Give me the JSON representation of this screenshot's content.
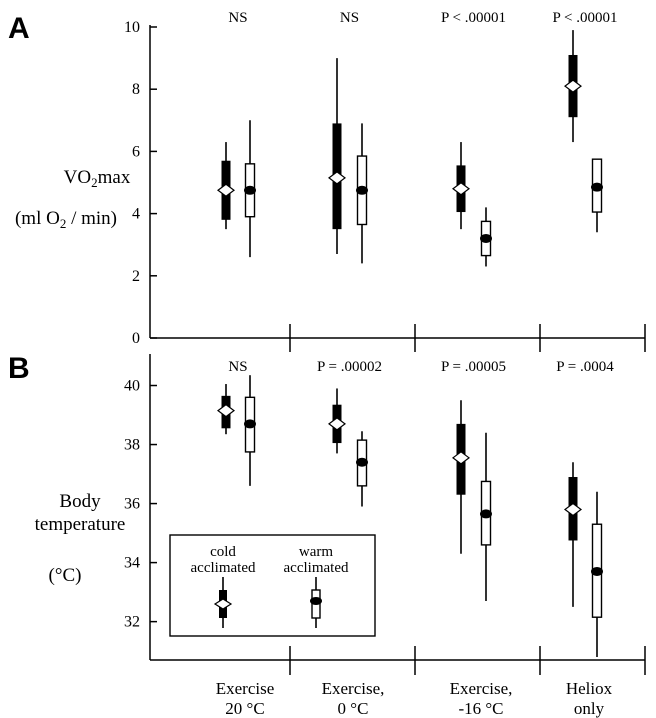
{
  "chart_data": [
    {
      "type": "box",
      "panel_label": "A",
      "ylabel_lines": [
        "VO2max",
        "(ml O2 / min)"
      ],
      "ylim": [
        0,
        10
      ],
      "yticks": [
        0,
        2,
        4,
        6,
        8,
        10
      ],
      "ytick_labels": [
        "0",
        "2",
        "4",
        "6",
        "8",
        "10"
      ],
      "categories": [
        "Exercise 20 °C",
        "Exercise, 0 °C",
        "Exercise, -16 °C",
        "Heliox only"
      ],
      "significance": [
        "NS",
        "NS",
        "P < .00001",
        "P < .00001"
      ],
      "series": [
        {
          "name": "cold acclimated",
          "style": "filled box, open diamond median",
          "min": [
            3.5,
            2.7,
            3.5,
            6.3
          ],
          "q1": [
            3.8,
            3.5,
            4.05,
            7.1
          ],
          "median": [
            4.75,
            5.15,
            4.8,
            8.1
          ],
          "q3": [
            5.7,
            6.9,
            5.55,
            9.1
          ],
          "max": [
            6.3,
            9.0,
            6.3,
            9.9
          ]
        },
        {
          "name": "warm acclimated",
          "style": "open box, filled dot median",
          "min": [
            2.6,
            2.4,
            2.3,
            3.4
          ],
          "q1": [
            3.9,
            3.65,
            2.65,
            4.05
          ],
          "median": [
            4.75,
            4.75,
            3.2,
            4.85
          ],
          "q3": [
            5.6,
            5.85,
            3.75,
            5.75
          ],
          "max": [
            7.0,
            6.9,
            4.2,
            5.75
          ]
        }
      ]
    },
    {
      "type": "box",
      "panel_label": "B",
      "ylabel_lines": [
        "Body",
        "temperature",
        "(°C)"
      ],
      "ylim": [
        30.7,
        41.0
      ],
      "yticks": [
        32,
        34,
        36,
        38,
        40
      ],
      "ytick_labels": [
        "32",
        "34",
        "36",
        "38",
        "40"
      ],
      "categories": [
        "Exercise 20 °C",
        "Exercise, 0 °C",
        "Exercise, -16 °C",
        "Heliox only"
      ],
      "category_label_lines": [
        [
          "Exercise",
          "20 °C"
        ],
        [
          "Exercise,",
          "0 °C"
        ],
        [
          "Exercise,",
          "-16 °C"
        ],
        [
          "Heliox",
          "only"
        ]
      ],
      "significance": [
        "NS",
        "P = .00002",
        "P = .00005",
        "P = .0004"
      ],
      "series": [
        {
          "name": "cold acclimated",
          "style": "filled box, open diamond median",
          "min": [
            38.35,
            37.7,
            34.3,
            32.5
          ],
          "q1": [
            38.55,
            38.05,
            36.3,
            34.75
          ],
          "median": [
            39.15,
            38.7,
            37.55,
            35.8
          ],
          "q3": [
            39.65,
            39.35,
            38.7,
            36.9
          ],
          "max": [
            40.05,
            39.9,
            39.5,
            37.4
          ]
        },
        {
          "name": "warm acclimated",
          "style": "open box, filled dot median",
          "min": [
            36.6,
            35.9,
            32.7,
            30.8
          ],
          "q1": [
            37.75,
            36.6,
            34.6,
            32.15
          ],
          "median": [
            38.7,
            37.4,
            35.65,
            33.7
          ],
          "q3": [
            39.6,
            38.15,
            36.75,
            35.3
          ],
          "max": [
            40.35,
            38.45,
            38.4,
            36.4
          ]
        }
      ]
    }
  ],
  "legend": {
    "cold_lines": [
      "cold",
      "acclimated"
    ],
    "warm_lines": [
      "warm",
      "acclimated"
    ]
  }
}
